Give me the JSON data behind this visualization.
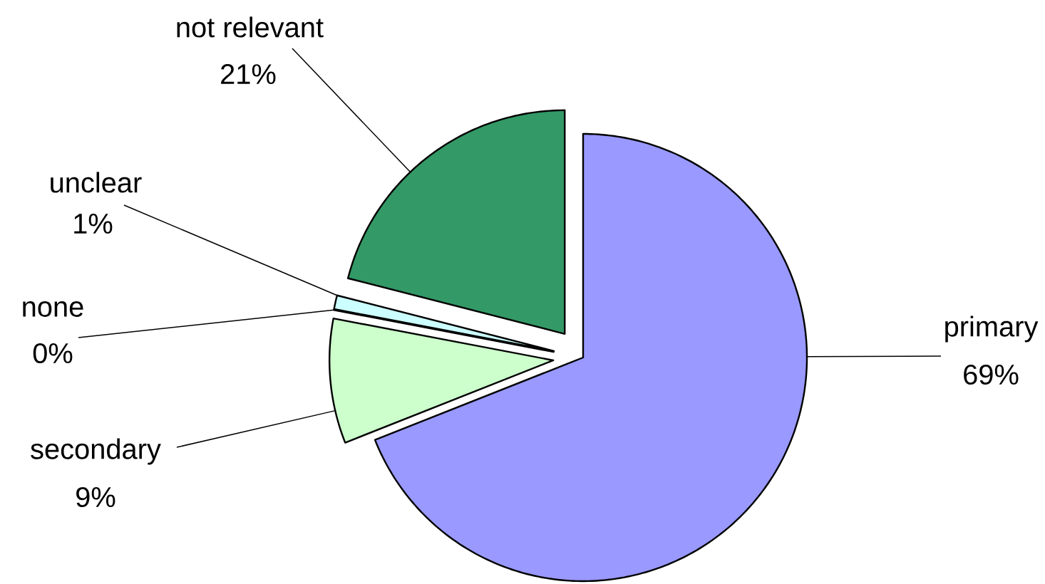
{
  "chart_data": {
    "type": "pie",
    "categories": [
      "primary",
      "secondary",
      "none",
      "unclear",
      "not relevant"
    ],
    "values": [
      69,
      9,
      0,
      1,
      21
    ],
    "value_labels": [
      "69%",
      "9%",
      "0%",
      "1%",
      "21%"
    ],
    "colors": [
      "#9999ff",
      "#ccffcc",
      "#000000",
      "#ccffff",
      "#339966"
    ]
  }
}
